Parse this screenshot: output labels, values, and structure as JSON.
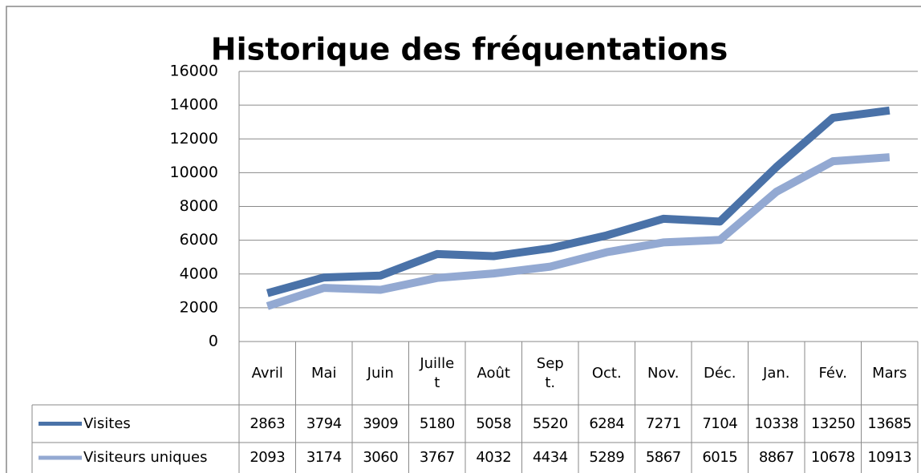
{
  "chart_data": {
    "type": "line",
    "title": "Historique des fréquentations",
    "categories": [
      "Avril",
      "Mai",
      "Juin",
      "Juillet",
      "Août",
      "Sept.",
      "Oct.",
      "Nov.",
      "Déc.",
      "Jan.",
      "Fév.",
      "Mars"
    ],
    "series": [
      {
        "name": "Visites",
        "color": "#4a72a8",
        "values": [
          2863,
          3794,
          3909,
          5180,
          5058,
          5520,
          6284,
          7271,
          7104,
          10338,
          13250,
          13685
        ]
      },
      {
        "name": "Visiteurs uniques",
        "color": "#93a9d2",
        "values": [
          2093,
          3174,
          3060,
          3767,
          4032,
          4434,
          5289,
          5867,
          6015,
          8867,
          10678,
          10913
        ]
      }
    ],
    "ylim": [
      0,
      16000
    ],
    "yticks": [
      0,
      2000,
      4000,
      6000,
      8000,
      10000,
      12000,
      14000,
      16000
    ],
    "grid": true
  }
}
